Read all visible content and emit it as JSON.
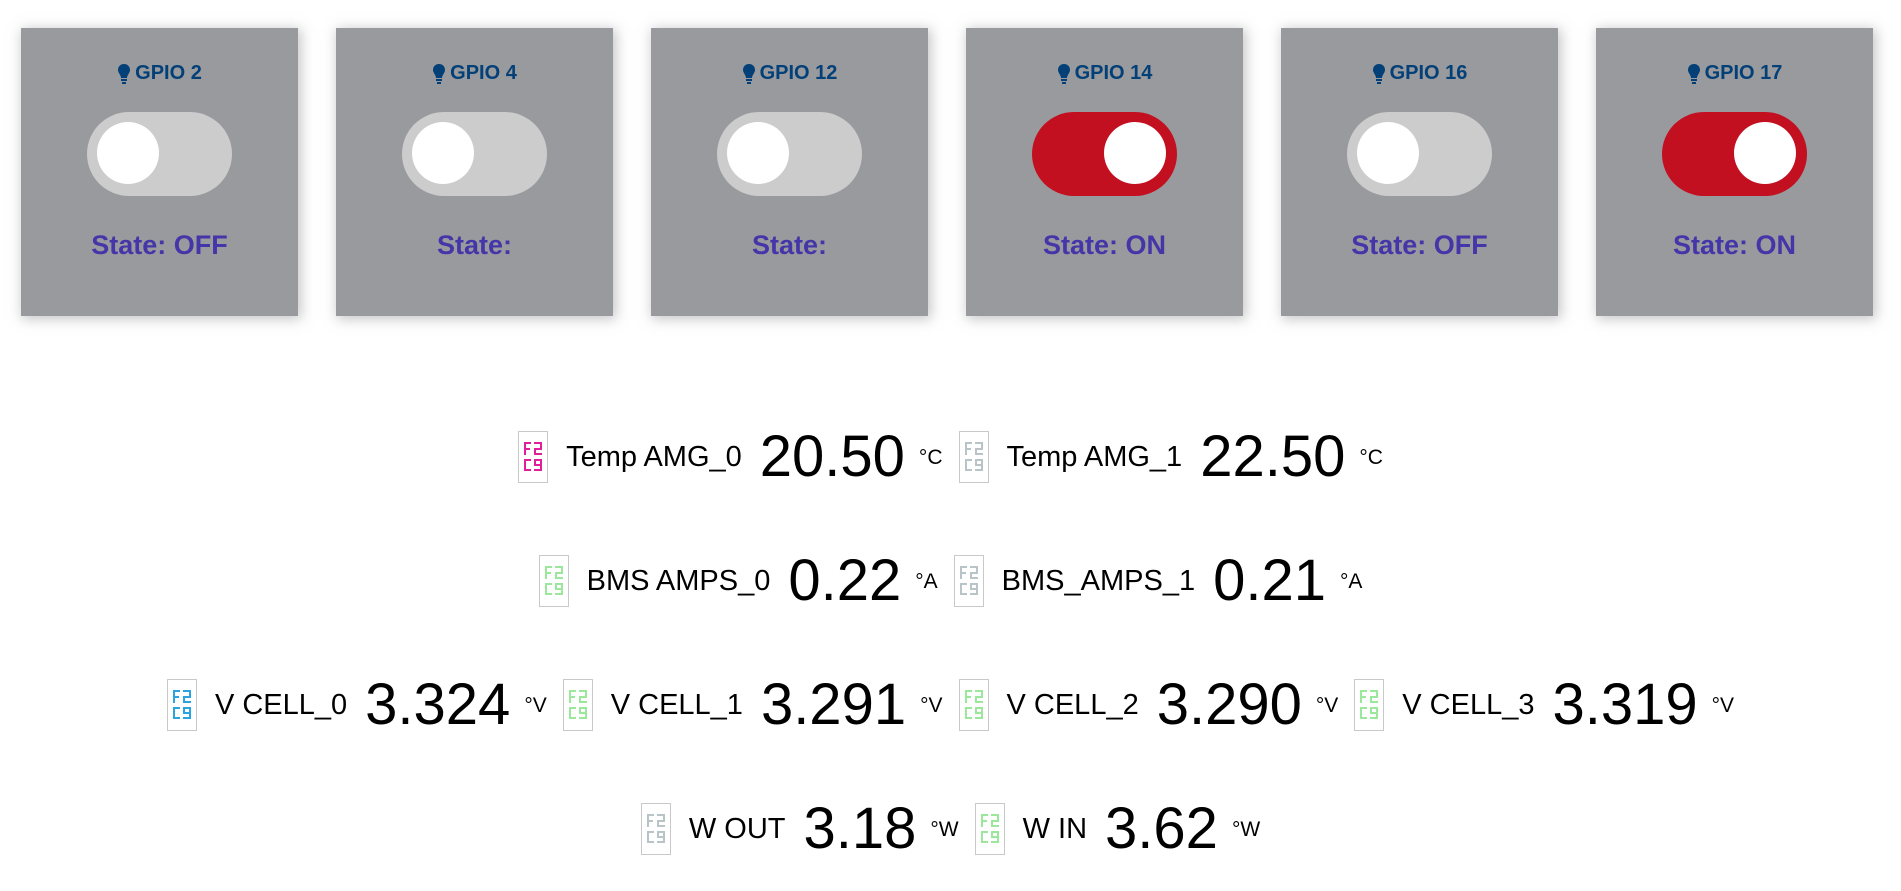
{
  "gpio_cards": [
    {
      "title": "GPIO 2",
      "state_label": "State: OFF",
      "on": false
    },
    {
      "title": "GPIO 4",
      "state_label": "State:",
      "on": false
    },
    {
      "title": "GPIO 12",
      "state_label": "State:",
      "on": false
    },
    {
      "title": "GPIO 14",
      "state_label": "State: ON",
      "on": true
    },
    {
      "title": "GPIO 16",
      "state_label": "State: OFF",
      "on": false
    },
    {
      "title": "GPIO 17",
      "state_label": "State: ON",
      "on": true
    }
  ],
  "colors": {
    "card_bg": "#999a9d",
    "title": "#034078",
    "state_text": "#4436a8",
    "toggle_on": "#c21021",
    "toggle_off": "#cccccc"
  },
  "readings": {
    "temps": [
      {
        "label": "Temp AMG_0",
        "value": "20.50",
        "unit": "°C",
        "icon": "sensor-glyph-icon",
        "icon_color": "#e0209a"
      },
      {
        "label": "Temp AMG_1",
        "value": "22.50",
        "unit": "°C",
        "icon": "sensor-glyph-icon",
        "icon_color": "#b8c4c8"
      }
    ],
    "amps": [
      {
        "label": "BMS AMPS_0",
        "value": "0.22",
        "unit": "°A",
        "icon": "sensor-glyph-icon",
        "icon_color": "#9be79b"
      },
      {
        "label": "BMS_AMPS_1",
        "value": "0.21",
        "unit": "°A",
        "icon": "sensor-glyph-icon",
        "icon_color": "#b8c4c8"
      }
    ],
    "cells": [
      {
        "label": "V CELL_0",
        "value": "3.324",
        "unit": "°V",
        "icon": "sensor-glyph-icon",
        "icon_color": "#2aa4e0"
      },
      {
        "label": "V CELL_1",
        "value": "3.291",
        "unit": "°V",
        "icon": "sensor-glyph-icon",
        "icon_color": "#9be79b"
      },
      {
        "label": "V CELL_2",
        "value": "3.290",
        "unit": "°V",
        "icon": "sensor-glyph-icon",
        "icon_color": "#9be79b"
      },
      {
        "label": "V CELL_3",
        "value": "3.319",
        "unit": "°V",
        "icon": "sensor-glyph-icon",
        "icon_color": "#9be79b"
      }
    ],
    "power": [
      {
        "label": "W OUT",
        "value": "3.18",
        "unit": "°W",
        "icon": "sensor-glyph-icon",
        "icon_color": "#b8c4c8"
      },
      {
        "label": "W IN",
        "value": "3.62",
        "unit": "°W",
        "icon": "sensor-glyph-icon",
        "icon_color": "#9be79b"
      }
    ]
  }
}
